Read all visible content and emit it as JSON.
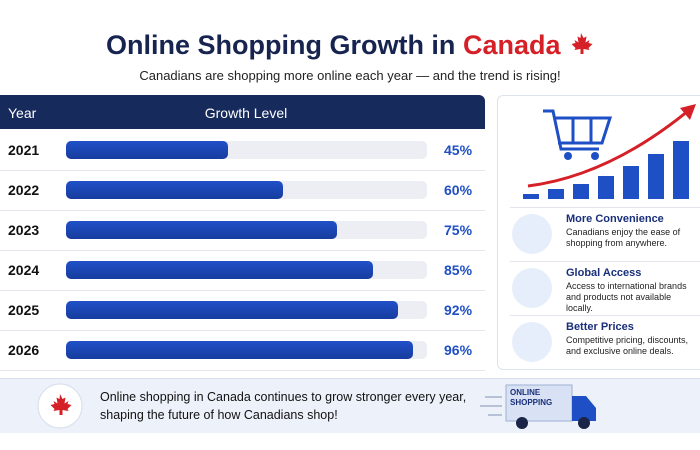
{
  "chart_data": {
    "type": "bar",
    "orientation": "horizontal",
    "title": "Online Shopping Growth in",
    "title_highlight": "Canada",
    "subtitle": "Canadians are shopping more online each year — and the trend is rising!",
    "column_headers": [
      "Year",
      "Growth Level"
    ],
    "categories": [
      "2021",
      "2022",
      "2023",
      "2024",
      "2025",
      "2026"
    ],
    "values": [
      45,
      60,
      75,
      85,
      92,
      96
    ],
    "value_labels": [
      "45%",
      "60%",
      "75%",
      "85%",
      "92%",
      "96%"
    ],
    "xlim": [
      0,
      100
    ],
    "color": "#2150c8",
    "features": [
      {
        "title": "More Convenience",
        "text": "Canadians enjoy the ease of shopping from anywhere."
      },
      {
        "title": "Global Access",
        "text": "Access to international brands and products not available locally."
      },
      {
        "title": "Better Prices",
        "text": "Competitive pricing, discounts, and exclusive online deals."
      }
    ],
    "footer": "Online shopping in Canada continues to grow stronger every year, shaping the future of how Canadians shop!",
    "badge": "ONLINE SHOPPING"
  }
}
